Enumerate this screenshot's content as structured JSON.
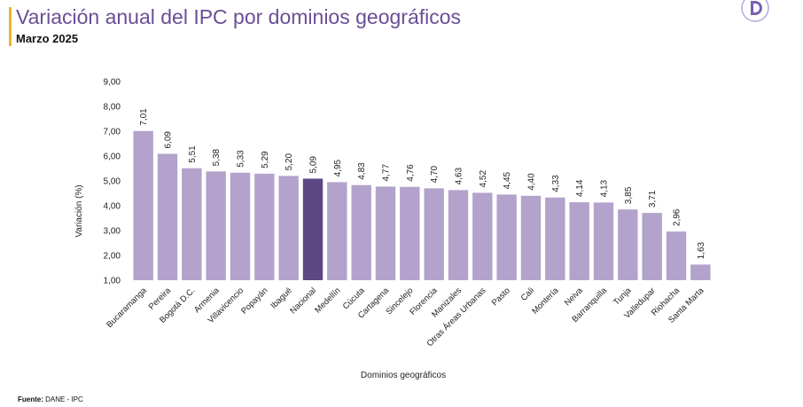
{
  "header": {
    "title": "Variación anual del IPC por dominios geográficos",
    "subtitle": "Marzo 2025"
  },
  "footer": {
    "source_label": "Fuente:",
    "source_value": "DANE - IPC"
  },
  "logo": {
    "icon": "dane-logo-icon",
    "color": "#7a5fb0"
  },
  "colors": {
    "bar": "#b3a2cc",
    "highlight": "#5e4785",
    "title": "#6a4e96",
    "accent": "#f0b429"
  },
  "chart_data": {
    "type": "bar",
    "title": "Variación anual del IPC por dominios geográficos",
    "subtitle": "Marzo 2025",
    "xlabel": "Dominios geográficos",
    "ylabel": "Variación (%)",
    "ylim": [
      1,
      9
    ],
    "yticks": [
      "1,00",
      "2,00",
      "3,00",
      "4,00",
      "5,00",
      "6,00",
      "7,00",
      "8,00",
      "9,00"
    ],
    "grid": false,
    "highlight_category": "Nacional",
    "categories": [
      "Bucaramanga",
      "Pereira",
      "Bogotá D.C.",
      "Armenia",
      "Villavicencio",
      "Popayán",
      "Ibagué",
      "Nacional",
      "Medellín",
      "Cúcuta",
      "Cartagena",
      "Sincelejo",
      "Florencia",
      "Manizales",
      "Otras Áreas Urbanas",
      "Pasto",
      "Cali",
      "Montería",
      "Neiva",
      "Barranquilla",
      "Tunja",
      "Valledupar",
      "Riohacha",
      "Santa Marta"
    ],
    "values": [
      7.01,
      6.09,
      5.51,
      5.38,
      5.33,
      5.29,
      5.2,
      5.09,
      4.95,
      4.83,
      4.77,
      4.76,
      4.7,
      4.63,
      4.52,
      4.45,
      4.4,
      4.33,
      4.14,
      4.13,
      3.85,
      3.71,
      2.96,
      1.63
    ],
    "value_labels": [
      "7,01",
      "6,09",
      "5,51",
      "5,38",
      "5,33",
      "5,29",
      "5,20",
      "5,09",
      "4,95",
      "4,83",
      "4,77",
      "4,76",
      "4,70",
      "4,63",
      "4,52",
      "4,45",
      "4,40",
      "4,33",
      "4,14",
      "4,13",
      "3,85",
      "3,71",
      "2,96",
      "1,63"
    ]
  }
}
